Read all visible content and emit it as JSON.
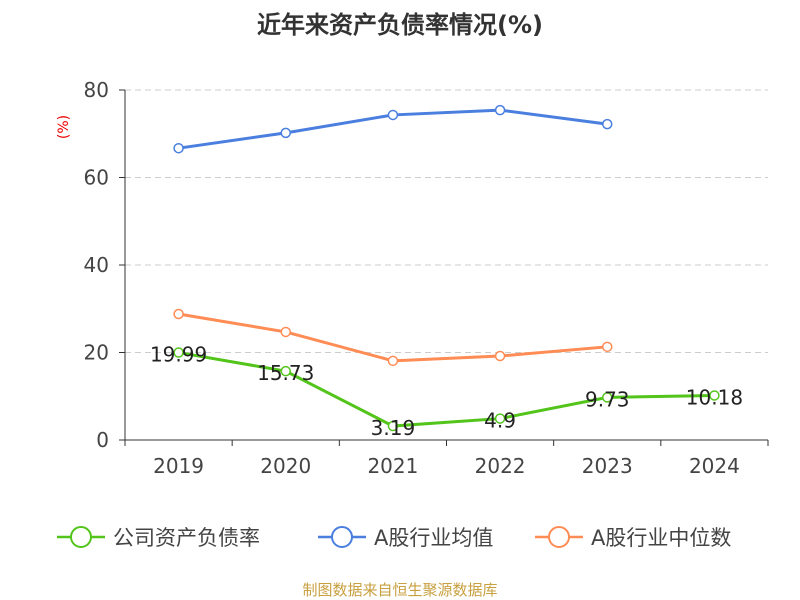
{
  "chart_data": {
    "type": "line",
    "title": "近年来资产负债率情况(%)",
    "ylabel": "(%)",
    "xlabel": "",
    "ylim": [
      0,
      80
    ],
    "yticks": [
      "0",
      "20",
      "40",
      "60",
      "80"
    ],
    "categories": [
      "2019",
      "2020",
      "2021",
      "2022",
      "2023",
      "2024"
    ],
    "grid": "horizontal-dashed",
    "legend_position": "bottom",
    "series": [
      {
        "name": "公司资产负债率",
        "color": "#52c41a",
        "values": [
          19.99,
          15.73,
          3.19,
          4.9,
          9.73,
          10.18
        ],
        "labels": [
          "19.99",
          "15.73",
          "3.19",
          "4.9",
          "9.73",
          "10.18"
        ]
      },
      {
        "name": "A股行业均值",
        "color": "#4a7fdf",
        "values": [
          66.7,
          70.2,
          74.3,
          75.4,
          72.2,
          null
        ]
      },
      {
        "name": "A股行业中位数",
        "color": "#ff8c55",
        "values": [
          28.8,
          24.7,
          18.1,
          19.2,
          21.3,
          null
        ]
      }
    ]
  },
  "source": "制图数据来自恒生聚源数据库"
}
